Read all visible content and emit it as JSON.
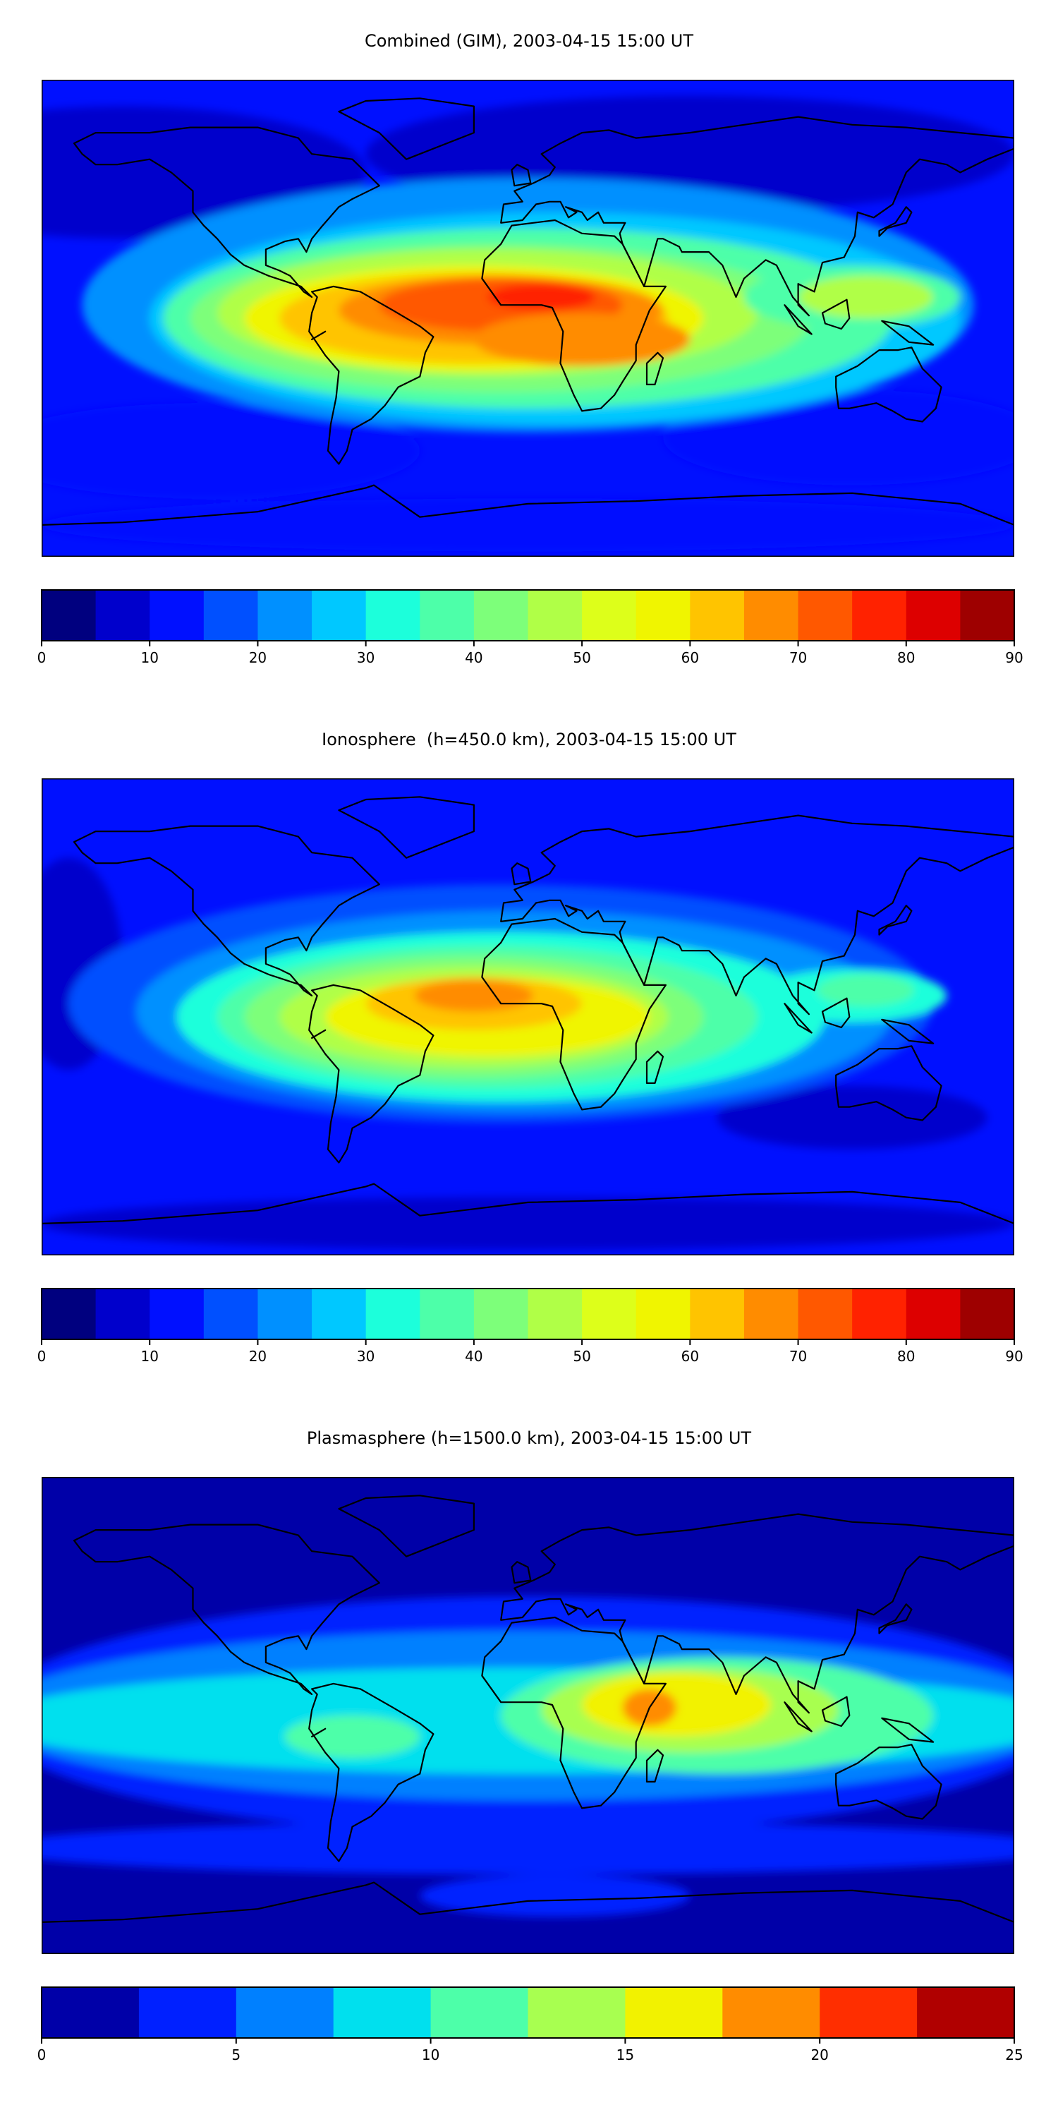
{
  "chart_data": [
    {
      "type": "heatmap",
      "title": "Combined (GIM), 2003-04-15 15:00 UT",
      "colorbar": {
        "levels": [
          0,
          5,
          10,
          15,
          20,
          25,
          30,
          35,
          40,
          45,
          50,
          55,
          60,
          65,
          70,
          75,
          80,
          85,
          90
        ],
        "ticks": [
          0,
          10,
          20,
          30,
          40,
          50,
          60,
          70,
          80,
          90
        ],
        "tick_labels": [
          "0",
          "10",
          "20",
          "30",
          "40",
          "50",
          "60",
          "70",
          "80",
          "90"
        ],
        "colors": [
          "#00007f",
          "#0000cc",
          "#0010ff",
          "#0050ff",
          "#0090ff",
          "#00c8ff",
          "#1cffdb",
          "#4dffa9",
          "#7dff7a",
          "#b0ff47",
          "#ddff1a",
          "#f0f500",
          "#ffc400",
          "#ff8c00",
          "#ff5800",
          "#ff2200",
          "#dd0000",
          "#9e0000"
        ]
      },
      "features": [
        {
          "label": "equatorial anomaly peak over Atlantic/Africa",
          "value": 75
        },
        {
          "label": "secondary band over Indian Ocean",
          "value": 40
        },
        {
          "label": "high latitude background",
          "value": 12
        }
      ]
    },
    {
      "type": "heatmap",
      "title": "Ionosphere  (h=450.0 km), 2003-04-15 15:00 UT",
      "colorbar": {
        "levels": [
          0,
          5,
          10,
          15,
          20,
          25,
          30,
          35,
          40,
          45,
          50,
          55,
          60,
          65,
          70,
          75,
          80,
          85,
          90
        ],
        "ticks": [
          0,
          10,
          20,
          30,
          40,
          50,
          60,
          70,
          80,
          90
        ],
        "tick_labels": [
          "0",
          "10",
          "20",
          "30",
          "40",
          "50",
          "60",
          "70",
          "80",
          "90"
        ],
        "colors": [
          "#00007f",
          "#0000cc",
          "#0010ff",
          "#0050ff",
          "#0090ff",
          "#00c8ff",
          "#1cffdb",
          "#4dffa9",
          "#7dff7a",
          "#b0ff47",
          "#ddff1a",
          "#f0f500",
          "#ffc400",
          "#ff8c00",
          "#ff5800",
          "#ff2200",
          "#dd0000",
          "#9e0000"
        ]
      },
      "features": [
        {
          "label": "equatorial anomaly peak over Atlantic",
          "value": 67
        },
        {
          "label": "crest over Africa",
          "value": 58
        },
        {
          "label": "high latitude background",
          "value": 10
        }
      ]
    },
    {
      "type": "heatmap",
      "title": "Plasmasphere (h=1500.0 km), 2003-04-15 15:00 UT",
      "colorbar": {
        "levels": [
          0,
          2.5,
          5,
          7.5,
          10,
          12.5,
          15,
          17.5,
          20,
          22.5,
          25
        ],
        "ticks": [
          0,
          5,
          10,
          15,
          20,
          25
        ],
        "tick_labels": [
          "0",
          "5",
          "10",
          "15",
          "20",
          "25"
        ],
        "colors": [
          "#0000a8",
          "#0020ff",
          "#0080ff",
          "#00e0ee",
          "#4dffa9",
          "#a8ff50",
          "#f2f200",
          "#ff8c00",
          "#ff2e00",
          "#b00000"
        ]
      },
      "features": [
        {
          "label": "maximum over East Africa / Arabian Sea",
          "value": 18
        },
        {
          "label": "low-latitude band",
          "value": 9
        },
        {
          "label": "polar background",
          "value": 1
        }
      ]
    }
  ]
}
